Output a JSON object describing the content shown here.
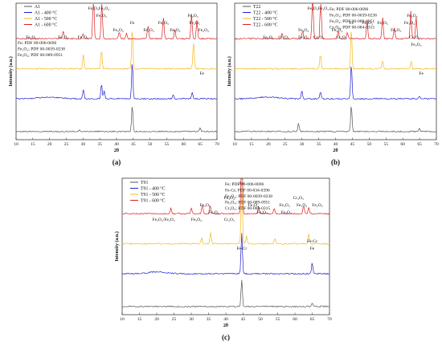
{
  "chart_data": [
    {
      "type": "line",
      "caption": "(a)",
      "xlabel": "2θ",
      "ylabel": "Intensity (a.u.)",
      "xlim": [
        10,
        70
      ],
      "xticks": [
        10,
        15,
        20,
        25,
        30,
        35,
        40,
        45,
        50,
        55,
        60,
        65,
        70
      ],
      "series": [
        {
          "name": "A1",
          "color": "#555555"
        },
        {
          "name": "A1 - 400 °C",
          "color": "#1f1fd0"
        },
        {
          "name": "A1 - 500 °C",
          "color": "#f5b820"
        },
        {
          "name": "A1 - 600 °C",
          "color": "#e02020"
        }
      ],
      "references": [
        "Fe; PDF 00-006-0696",
        "Fe₂O₃; PDF 00-0039-0238",
        "Fe₃O₄; PDF 00-089-0951"
      ],
      "peaks": [
        {
          "series": 0,
          "x": 44.7,
          "h": 1.0
        },
        {
          "series": 0,
          "x": 65.0,
          "h": 0.12
        },
        {
          "series": 0,
          "x": 29.0,
          "h": 0.06
        },
        {
          "series": 1,
          "x": 30.1,
          "h": 0.35
        },
        {
          "series": 1,
          "x": 35.5,
          "h": 0.55
        },
        {
          "series": 1,
          "x": 36.3,
          "h": 0.3
        },
        {
          "series": 1,
          "x": 44.7,
          "h": 1.4
        },
        {
          "series": 1,
          "x": 57.0,
          "h": 0.15
        },
        {
          "series": 1,
          "x": 62.6,
          "h": 0.25
        },
        {
          "series": 2,
          "x": 30.1,
          "h": 0.5
        },
        {
          "series": 2,
          "x": 35.5,
          "h": 0.7
        },
        {
          "series": 2,
          "x": 44.7,
          "h": 1.5
        },
        {
          "series": 2,
          "x": 63.0,
          "h": 1.0
        },
        {
          "series": 3,
          "x": 24.1,
          "h": 0.3
        },
        {
          "series": 3,
          "x": 30.0,
          "h": 0.2
        },
        {
          "series": 3,
          "x": 33.1,
          "h": 1.8
        },
        {
          "series": 3,
          "x": 35.6,
          "h": 1.4
        },
        {
          "series": 3,
          "x": 40.8,
          "h": 0.25
        },
        {
          "series": 3,
          "x": 43.0,
          "h": 0.2
        },
        {
          "series": 3,
          "x": 49.4,
          "h": 0.5
        },
        {
          "series": 3,
          "x": 54.0,
          "h": 0.8
        },
        {
          "series": 3,
          "x": 57.4,
          "h": 0.35
        },
        {
          "series": 3,
          "x": 62.4,
          "h": 0.9
        },
        {
          "series": 3,
          "x": 64.0,
          "h": 0.7
        }
      ],
      "annotations": [
        {
          "text": "Fe₂O₃",
          "x": 33.1,
          "row": 0
        },
        {
          "text": "Fe₃O₄",
          "x": 36.3,
          "row": 0
        },
        {
          "text": "Fe₂O₃",
          "x": 35.5,
          "row": 1
        },
        {
          "text": "Fe",
          "x": 44.7,
          "row": 2
        },
        {
          "text": "Fe₂O₃",
          "x": 24.1,
          "row": 4
        },
        {
          "text": "Fe₂O₃",
          "x": 30.0,
          "row": 4
        },
        {
          "text": "Fe₂O₃",
          "x": 40.5,
          "row": 3
        },
        {
          "text": "Fe₂O₃",
          "x": 49.6,
          "row": 3
        },
        {
          "text": "Fe₂O₃",
          "x": 54.0,
          "row": 2
        },
        {
          "text": "Fe₂O₃",
          "x": 57.5,
          "row": 3
        },
        {
          "text": "Fe₂O₃",
          "x": 62.8,
          "row": 1
        },
        {
          "text": "Fe₂O₃",
          "x": 63.3,
          "row": 2
        },
        {
          "text": "Fe₂O₃",
          "x": 66.0,
          "row": 3
        },
        {
          "text": "Fe₂O₃",
          "x": 14.5,
          "row": 4
        },
        {
          "text": "Fe",
          "x": 65.5,
          "row": 9
        }
      ]
    },
    {
      "type": "line",
      "caption": "(b)",
      "xlabel": "2θ",
      "ylabel": "Intensity (a.u.)",
      "xlim": [
        10,
        70
      ],
      "xticks": [
        10,
        15,
        20,
        25,
        30,
        35,
        40,
        45,
        50,
        55,
        60,
        65,
        70
      ],
      "series": [
        {
          "name": "T22",
          "color": "#555555"
        },
        {
          "name": "T22 - 400 °C",
          "color": "#1f1fd0"
        },
        {
          "name": "T22 - 500 °C",
          "color": "#f5b820"
        },
        {
          "name": "T22 - 600 °C",
          "color": "#e02020"
        }
      ],
      "references": [
        "Fe; PDF 00-006-0696",
        "Fe₂O₃; PDF 00-0039-0238",
        "Fe₃O₄; PDF 00-089-0951",
        "Cr₂O₃; PDF 00-084-0315"
      ],
      "peaks": [
        {
          "series": 0,
          "x": 44.7,
          "h": 1.0
        },
        {
          "series": 0,
          "x": 65.0,
          "h": 0.12
        },
        {
          "series": 0,
          "x": 29.0,
          "h": 0.3
        },
        {
          "series": 1,
          "x": 30.0,
          "h": 0.3
        },
        {
          "series": 1,
          "x": 35.5,
          "h": 0.25
        },
        {
          "series": 1,
          "x": 44.7,
          "h": 1.3
        },
        {
          "series": 1,
          "x": 65.0,
          "h": 0.1
        },
        {
          "series": 2,
          "x": 35.5,
          "h": 0.55
        },
        {
          "series": 2,
          "x": 44.7,
          "h": 1.5
        },
        {
          "series": 2,
          "x": 54.0,
          "h": 0.3
        },
        {
          "series": 2,
          "x": 62.5,
          "h": 0.3
        },
        {
          "series": 3,
          "x": 24.1,
          "h": 0.2
        },
        {
          "series": 3,
          "x": 30.2,
          "h": 0.3
        },
        {
          "series": 3,
          "x": 33.2,
          "h": 1.8
        },
        {
          "series": 3,
          "x": 35.6,
          "h": 1.6
        },
        {
          "series": 3,
          "x": 40.8,
          "h": 0.3
        },
        {
          "series": 3,
          "x": 43.5,
          "h": 0.25
        },
        {
          "series": 3,
          "x": 49.4,
          "h": 0.7
        },
        {
          "series": 3,
          "x": 54.0,
          "h": 0.85
        },
        {
          "series": 3,
          "x": 57.5,
          "h": 0.4
        },
        {
          "series": 3,
          "x": 62.4,
          "h": 1.0
        },
        {
          "series": 3,
          "x": 64.0,
          "h": 0.8
        }
      ],
      "annotations": [
        {
          "text": "Fe₂O₃",
          "x": 33.2,
          "row": 0
        },
        {
          "text": "Fe₃O₄",
          "x": 36.4,
          "row": 0
        },
        {
          "text": "Fe",
          "x": 44.7,
          "row": 2
        },
        {
          "text": "Fe₂O₃",
          "x": 20.0,
          "row": 4
        },
        {
          "text": "Cr₂O₃",
          "x": 24.6,
          "row": 4
        },
        {
          "text": "Fe₃O₄",
          "x": 30.5,
          "row": 3
        },
        {
          "text": "Fe₂O₃",
          "x": 30.5,
          "row": 4
        },
        {
          "text": "Cr₂O₃",
          "x": 35.0,
          "row": 4
        },
        {
          "text": "Fe₂O₃",
          "x": 40.5,
          "row": 3
        },
        {
          "text": "Cr₂O₃",
          "x": 41.8,
          "row": 4
        },
        {
          "text": "Fe₂O₃",
          "x": 49.5,
          "row": 2
        },
        {
          "text": "Fe₂O₃",
          "x": 54.0,
          "row": 2
        },
        {
          "text": "Fe₂O₃",
          "x": 58.0,
          "row": 3
        },
        {
          "text": "Fe₂O₃",
          "x": 62.8,
          "row": 1
        },
        {
          "text": "Fe₃O₄",
          "x": 62.0,
          "row": 2
        },
        {
          "text": "Cr₂O₃",
          "x": 63.5,
          "row": 4
        },
        {
          "text": "Fe₂O₃",
          "x": 64.0,
          "row": 5
        },
        {
          "text": "Fe",
          "x": 65.5,
          "row": 9
        }
      ]
    },
    {
      "type": "line",
      "caption": "(c)",
      "xlabel": "2θ",
      "ylabel": "Intensity (a.u.)",
      "xlim": [
        10,
        70
      ],
      "xticks": [
        10,
        15,
        20,
        25,
        30,
        35,
        40,
        45,
        50,
        55,
        60,
        65,
        70
      ],
      "series": [
        {
          "name": "T91",
          "color": "#555555"
        },
        {
          "name": "T91 - 400 °C",
          "color": "#1f1fd0"
        },
        {
          "name": "T91 - 500 °C",
          "color": "#f5b820"
        },
        {
          "name": "T91 - 600 °C",
          "color": "#e02020"
        }
      ],
      "references": [
        "Fe; PDF 00-006-0696",
        "Fe-Cr; PDF 00-034-0396",
        "Fe₂O₃; PDF 00-0039-0238",
        "Fe₃O₄; PDF 00-089-0951",
        "Cr₂O₃; PDF 00-084-0315"
      ],
      "peaks": [
        {
          "series": 0,
          "x": 44.6,
          "h": 1.0
        },
        {
          "series": 0,
          "x": 65.0,
          "h": 0.15
        },
        {
          "series": 1,
          "x": 44.6,
          "h": 1.5
        },
        {
          "series": 1,
          "x": 65.0,
          "h": 0.4
        },
        {
          "series": 2,
          "x": 33.0,
          "h": 0.2
        },
        {
          "series": 2,
          "x": 35.6,
          "h": 0.4
        },
        {
          "series": 2,
          "x": 44.6,
          "h": 2.2
        },
        {
          "series": 2,
          "x": 46.0,
          "h": 0.3
        },
        {
          "series": 2,
          "x": 54.2,
          "h": 0.2
        },
        {
          "series": 2,
          "x": 64.0,
          "h": 0.35
        },
        {
          "series": 3,
          "x": 24.1,
          "h": 0.2
        },
        {
          "series": 3,
          "x": 30.0,
          "h": 0.2
        },
        {
          "series": 3,
          "x": 33.2,
          "h": 0.35
        },
        {
          "series": 3,
          "x": 35.5,
          "h": 0.3
        },
        {
          "series": 3,
          "x": 44.6,
          "h": 3.0
        },
        {
          "series": 3,
          "x": 49.5,
          "h": 0.25
        },
        {
          "series": 3,
          "x": 54.0,
          "h": 0.2
        },
        {
          "series": 3,
          "x": 62.5,
          "h": 0.3
        },
        {
          "series": 3,
          "x": 64.0,
          "h": 0.25
        }
      ],
      "annotations": [
        {
          "text": "Fe",
          "x": 44.6,
          "row": 0
        },
        {
          "text": "Fe₃O₄",
          "x": 41.0,
          "row": 2
        },
        {
          "text": "Fe₂O₃",
          "x": 34.0,
          "row": 3
        },
        {
          "text": "Fe₃O₄",
          "x": 36.5,
          "row": 4
        },
        {
          "text": "Cr₂O₃",
          "x": 41.0,
          "row": 5
        },
        {
          "text": "Fe₃O₄/Fe₂O₃",
          "x": 22.0,
          "row": 5
        },
        {
          "text": "Fe₃O₄",
          "x": 31.5,
          "row": 5
        },
        {
          "text": "Fe₃O₄",
          "x": 48.0,
          "row": 3
        },
        {
          "text": "Fe₃O₄",
          "x": 50.5,
          "row": 4
        },
        {
          "text": "Fe₃O₄",
          "x": 57.0,
          "row": 3
        },
        {
          "text": "Fe₃O₄",
          "x": 57.5,
          "row": 4
        },
        {
          "text": "Cr₂O₃",
          "x": 61.0,
          "row": 2
        },
        {
          "text": "Fe₂O₃",
          "x": 62.0,
          "row": 3
        },
        {
          "text": "Fe₂O₃",
          "x": 66.5,
          "row": 3
        },
        {
          "text": "Fe-Cr",
          "x": 44.6,
          "row": 9
        },
        {
          "text": "Fe-Cr",
          "x": 65.0,
          "row": 8
        },
        {
          "text": "Fe",
          "x": 65.0,
          "row": 9
        }
      ]
    }
  ]
}
